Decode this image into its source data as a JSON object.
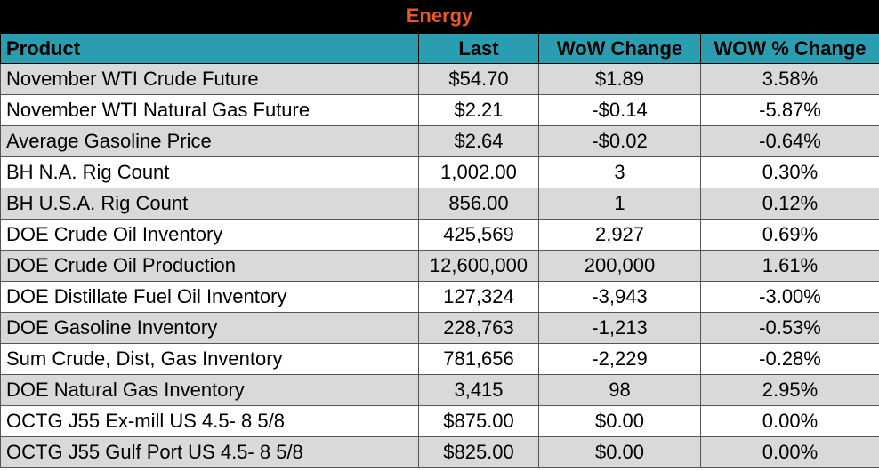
{
  "title": "Energy",
  "colors": {
    "title_bg": "#000000",
    "title_text": "#e8562a",
    "header_bg": "#2a9eb0",
    "row_shade": "#d9d9d9"
  },
  "headers": [
    "Product",
    "Last",
    "WoW Change",
    "WOW % Change"
  ],
  "rows": [
    [
      "November WTI Crude Future",
      "$54.70",
      "$1.89",
      "3.58%"
    ],
    [
      "November WTI Natural Gas Future",
      "$2.21",
      "-$0.14",
      "-5.87%"
    ],
    [
      "Average Gasoline Price",
      "$2.64",
      "-$0.02",
      "-0.64%"
    ],
    [
      "BH N.A. Rig Count",
      "1,002.00",
      "3",
      "0.30%"
    ],
    [
      "BH U.S.A. Rig Count",
      "856.00",
      "1",
      "0.12%"
    ],
    [
      "DOE Crude Oil Inventory",
      "425,569",
      "2,927",
      "0.69%"
    ],
    [
      "DOE Crude Oil Production",
      "12,600,000",
      "200,000",
      "1.61%"
    ],
    [
      "DOE Distillate Fuel Oil Inventory",
      "127,324",
      "-3,943",
      "-3.00%"
    ],
    [
      "DOE Gasoline Inventory",
      "228,763",
      "-1,213",
      "-0.53%"
    ],
    [
      "Sum Crude, Dist, Gas Inventory",
      "781,656",
      "-2,229",
      "-0.28%"
    ],
    [
      "DOE Natural Gas Inventory",
      "3,415",
      "98",
      "2.95%"
    ],
    [
      "OCTG J55 Ex-mill US 4.5- 8 5/8",
      "$875.00",
      "$0.00",
      "0.00%"
    ],
    [
      "OCTG J55 Gulf Port US 4.5- 8 5/8",
      "$825.00",
      "$0.00",
      "0.00%"
    ]
  ]
}
